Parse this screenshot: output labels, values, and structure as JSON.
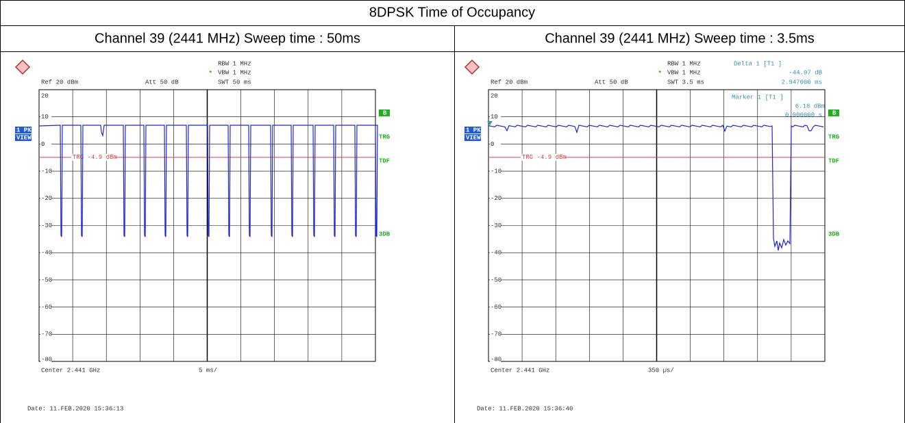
{
  "title": "8DPSK Time of Occupancy",
  "panels": [
    {
      "header": "Channel 39 (2441 MHz) Sweep time : 50ms",
      "rbw": "RBW 1 MHz",
      "vbw": "VBW 1 MHz",
      "ref": "Ref  20 dBm",
      "att": "Att  50 dB",
      "swt": "SWT 50 ms",
      "ylim": [
        -80,
        20
      ],
      "yticks": [
        20,
        10,
        0,
        -10,
        -20,
        -30,
        -40,
        -50,
        -60,
        -70,
        -80
      ],
      "trigger": -4.9,
      "trigger_label": "TRG -4.9 dBm",
      "center": "Center 2.441 GHz",
      "span": "5 ms/",
      "date": "Date: 11.FEB.2020  15:36:13",
      "trace_label": "1 PK",
      "view": "VIEW",
      "side": [
        "B",
        "TRG",
        "TDF",
        "3DB"
      ]
    },
    {
      "header": "Channel 39 (2441 MHz) Sweep time : 3.5ms",
      "rbw": "RBW 1 MHz",
      "vbw": "VBW 1 MHz",
      "ref": "Ref  20 dBm",
      "att": "Att  50 dB",
      "swt": "SWT 3.5 ms",
      "ylim": [
        -80,
        20
      ],
      "yticks": [
        20,
        10,
        0,
        -10,
        -20,
        -30,
        -40,
        -50,
        -60,
        -70,
        -80
      ],
      "trigger": -4.9,
      "trigger_label": "TRG -4.9 dBm",
      "center": "Center 2.441 GHz",
      "span": "350 µs/",
      "date": "Date: 11.FEB.2020  15:36:40",
      "trace_label": "1 PK",
      "view": "VIEW",
      "side": [
        "B",
        "TRG",
        "TDF",
        "3DB"
      ],
      "delta": "Delta 1 [T1 ]",
      "delta_level": "-44.07 dB",
      "delta_time": "2.947000 ms",
      "marker": "Marker 1 [T1 ]",
      "marker_level": "6.18 dBm",
      "marker_time": "0.000000 s"
    }
  ]
}
